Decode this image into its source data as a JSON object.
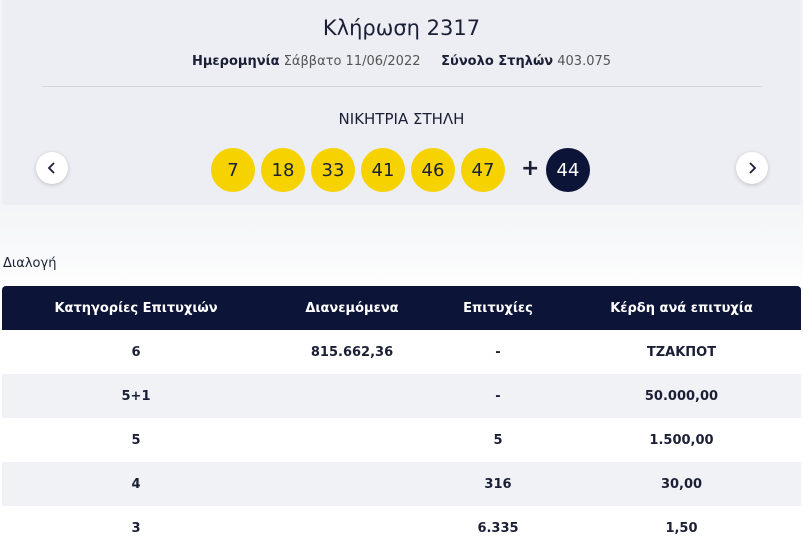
{
  "header": {
    "title": "Κλήρωση 2317",
    "date_label": "Ημερομηνία",
    "date": "Σάββατο 11/06/2022",
    "total_label": "Σύνολο Στηλών",
    "total": "403.075"
  },
  "draw": {
    "label": "ΝΙΚΗΤΡΙΑ ΣΤΗΛΗ",
    "numbers": [
      "7",
      "18",
      "33",
      "41",
      "46",
      "47"
    ],
    "plus": "+",
    "bonus": "44"
  },
  "section": "Διαλογή",
  "table": {
    "columns": [
      "Κατηγορίες Επιτυχιών",
      "Διανεμόμενα",
      "Επιτυχίες",
      "Κέρδη ανά επιτυχία"
    ],
    "rows": [
      [
        "6",
        "815.662,36",
        "-",
        "ΤΖΑΚΠΟΤ"
      ],
      [
        "5+1",
        null,
        "-",
        "50.000,00"
      ],
      [
        "5",
        null,
        "5",
        "1.500,00"
      ],
      [
        "4",
        null,
        "316",
        "30,00"
      ],
      [
        "3",
        null,
        "6.335",
        "1,50"
      ]
    ]
  }
}
